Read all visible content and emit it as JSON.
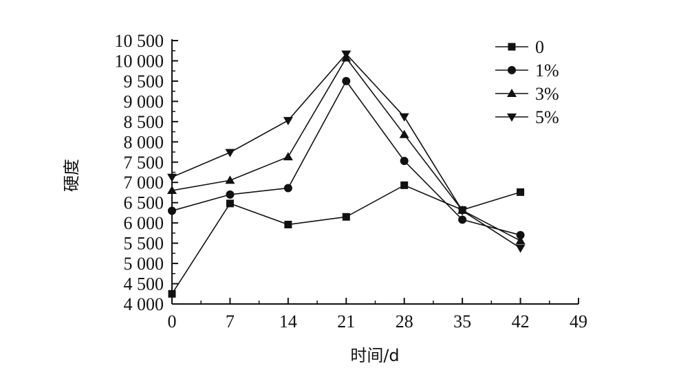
{
  "chart_data": {
    "type": "line",
    "xlabel": "时间/d",
    "ylabel": "硬度",
    "x": [
      0,
      7,
      14,
      21,
      28,
      35,
      42
    ],
    "x_ticks": [
      0,
      7,
      14,
      21,
      28,
      35,
      42,
      49
    ],
    "x_tick_labels": [
      "0",
      "7",
      "14",
      "21",
      "28",
      "35",
      "42",
      "49"
    ],
    "xlim": [
      0,
      49
    ],
    "y_ticks": [
      4000,
      4500,
      5000,
      5500,
      6000,
      6500,
      7000,
      7500,
      8000,
      8500,
      9000,
      9500,
      10000,
      10500
    ],
    "y_tick_labels": [
      "4 000",
      "4 500",
      "5 000",
      "5 500",
      "6 000",
      "6 500",
      "7 000",
      "7 500",
      "8 000",
      "8 500",
      "9 000",
      "9 500",
      "10 000",
      "10 500"
    ],
    "ylim": [
      4000,
      10500
    ],
    "grid": false,
    "legend_position": "top-right",
    "series": [
      {
        "name": "0",
        "marker": "square",
        "values": [
          4250,
          6480,
          5960,
          6150,
          6930,
          6320,
          6760
        ]
      },
      {
        "name": "1%",
        "marker": "circle",
        "values": [
          6300,
          6700,
          6860,
          9500,
          7530,
          6080,
          5700
        ]
      },
      {
        "name": "3%",
        "marker": "triangle-up",
        "values": [
          6800,
          7050,
          7630,
          10070,
          8180,
          6310,
          5560
        ]
      },
      {
        "name": "5%",
        "marker": "triangle-down",
        "values": [
          7130,
          7740,
          8530,
          10170,
          8620,
          6300,
          5380
        ]
      }
    ]
  }
}
